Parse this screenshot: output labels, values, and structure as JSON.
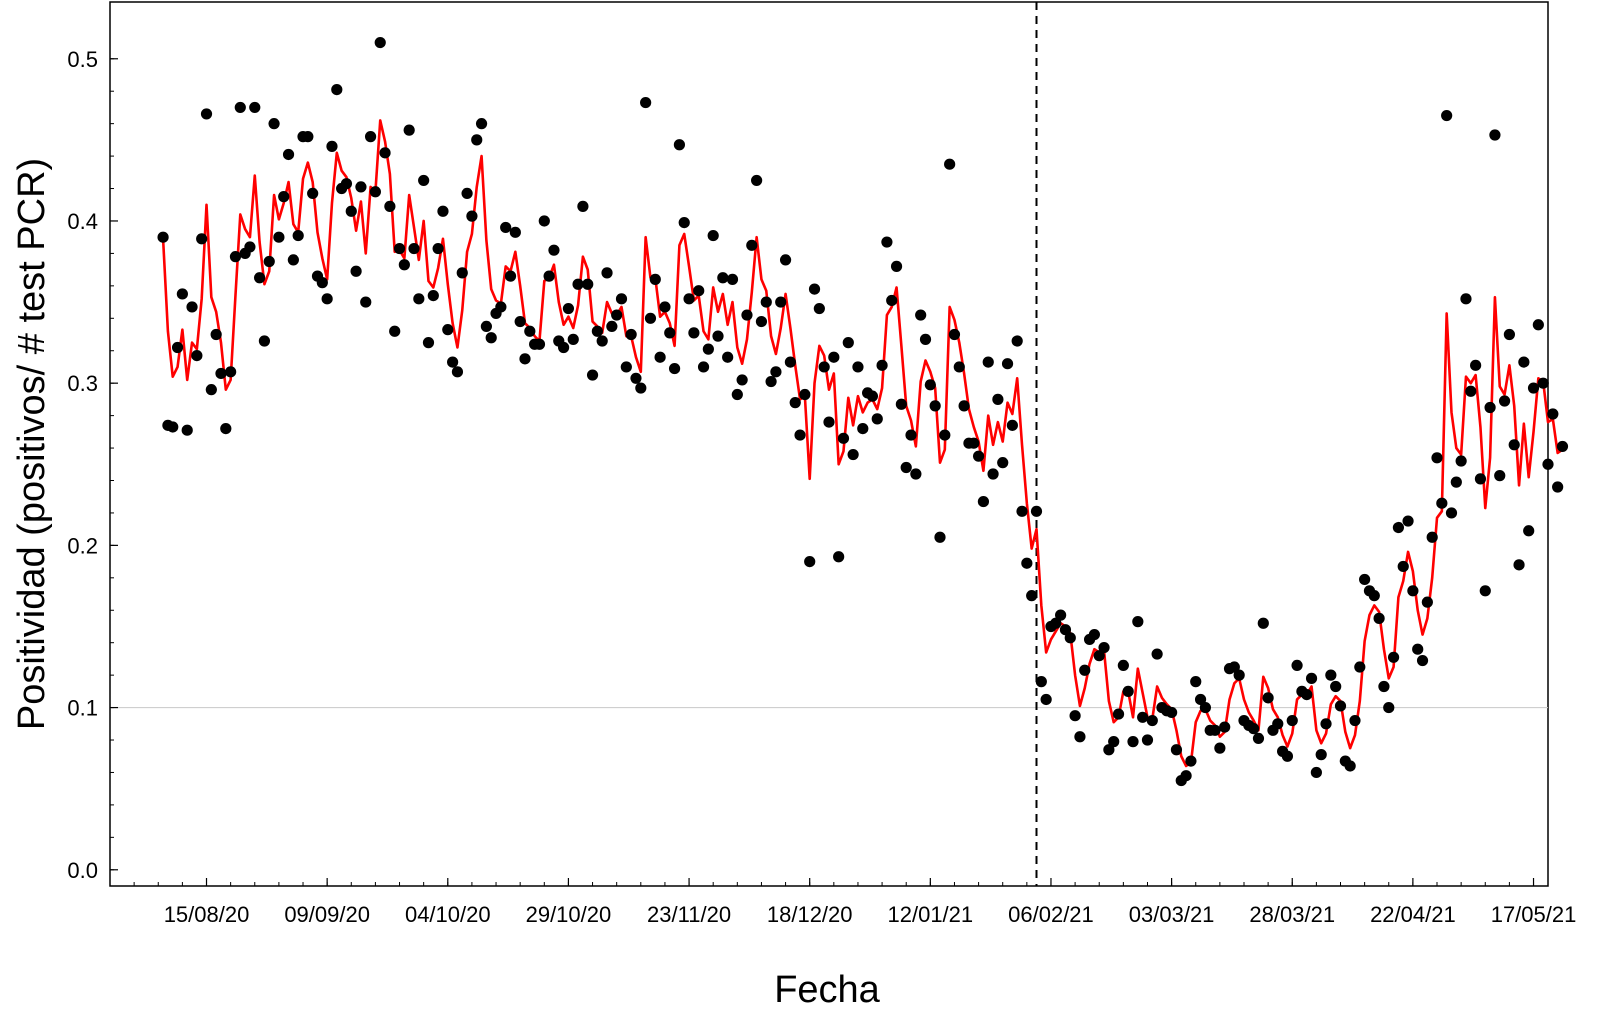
{
  "chart_data": {
    "type": "scatter",
    "title": "",
    "xlabel": "Fecha",
    "ylabel": "Positividad (positivos/ # test PCR)",
    "x_ticks": [
      "15/08/20",
      "09/09/20",
      "04/10/20",
      "29/10/20",
      "23/11/20",
      "18/12/20",
      "12/01/21",
      "06/02/21",
      "03/03/21",
      "28/03/21",
      "22/04/21",
      "17/05/21"
    ],
    "y_ticks": [
      "0.0",
      "0.1",
      "0.2",
      "0.3",
      "0.4",
      "0.5"
    ],
    "ylim": [
      -0.01,
      0.535
    ],
    "xlim": [
      "2020-07-26",
      "2021-05-20"
    ],
    "reference_line_y": 0.1,
    "vertical_marker_date": "2021-02-03",
    "series": [
      {
        "kind": "points",
        "color": "#000000",
        "x_start": "2020-08-06",
        "values": [
          0.39,
          0.274,
          0.273,
          0.322,
          0.355,
          0.271,
          0.347,
          0.317,
          0.389,
          0.466,
          0.296,
          0.33,
          0.306,
          0.272,
          0.307,
          0.378,
          0.47,
          0.38,
          0.384,
          0.47,
          0.365,
          0.326,
          0.375,
          0.46,
          0.39,
          0.415,
          0.441,
          0.376,
          0.391,
          0.452,
          0.452,
          0.417,
          0.366,
          0.362,
          0.352,
          0.446,
          0.481,
          0.42,
          0.423,
          0.406,
          0.369,
          0.421,
          0.35,
          0.452,
          0.418,
          0.51,
          0.442,
          0.409,
          0.332,
          0.383,
          0.373,
          0.456,
          0.383,
          0.352,
          0.425,
          0.325,
          0.354,
          0.383,
          0.406,
          0.333,
          0.313,
          0.307,
          0.368,
          0.417,
          0.403,
          0.45,
          0.46,
          0.335,
          0.328,
          0.343,
          0.347,
          0.396,
          0.366,
          0.393,
          0.338,
          0.315,
          0.332,
          0.324,
          0.324,
          0.4,
          0.366,
          0.382,
          0.326,
          0.322,
          0.346,
          0.327,
          0.361,
          0.409,
          0.361,
          0.305,
          0.332,
          0.326,
          0.368,
          0.335,
          0.342,
          0.352,
          0.31,
          0.33,
          0.303,
          0.297,
          0.473,
          0.34,
          0.364,
          0.316,
          0.347,
          0.331,
          0.309,
          0.447,
          0.399,
          0.352,
          0.331,
          0.357,
          0.31,
          0.321,
          0.391,
          0.329,
          0.365,
          0.316,
          0.364,
          0.293,
          0.302,
          0.342,
          0.385,
          0.425,
          0.338,
          0.35,
          0.301,
          0.307,
          0.35,
          0.376,
          0.313,
          0.288,
          0.268,
          0.293,
          0.19,
          0.358,
          0.346,
          0.31,
          0.276,
          0.316,
          0.193,
          0.266,
          0.325,
          0.256,
          0.31,
          0.272,
          0.294,
          0.292,
          0.278,
          0.311,
          0.387,
          0.351,
          0.372,
          0.287,
          0.248,
          0.268,
          0.244,
          0.342,
          0.327,
          0.299,
          0.286,
          0.205,
          0.268,
          0.435,
          0.33,
          0.31,
          0.286,
          0.263,
          0.263,
          0.255,
          0.227,
          0.313,
          0.244,
          0.29,
          0.251,
          0.312,
          0.274,
          0.326,
          0.221,
          0.189,
          0.169,
          0.221,
          0.116,
          0.105,
          0.15,
          0.152,
          0.157,
          0.148,
          0.143,
          0.095,
          0.082,
          0.123,
          0.142,
          0.145,
          0.132,
          0.137,
          0.074,
          0.079,
          0.096,
          0.126,
          0.11,
          0.079,
          0.153,
          0.094,
          0.08,
          0.092,
          0.133,
          0.1,
          0.098,
          0.097,
          0.074,
          0.055,
          0.058,
          0.067,
          0.116,
          0.105,
          0.1,
          0.086,
          0.086,
          0.075,
          0.088,
          0.124,
          0.125,
          0.12,
          0.092,
          0.089,
          0.087,
          0.081,
          0.152,
          0.106,
          0.086,
          0.09,
          0.073,
          0.07,
          0.092,
          0.126,
          0.11,
          0.108,
          0.118,
          0.06,
          0.071,
          0.09,
          0.12,
          0.113,
          0.101,
          0.067,
          0.064,
          0.092,
          0.125,
          0.179,
          0.172,
          0.169,
          0.155,
          0.113,
          0.1,
          0.131,
          0.211,
          0.187,
          0.215,
          0.172,
          0.136,
          0.129,
          0.165,
          0.205,
          0.254,
          0.226,
          0.465,
          0.22,
          0.239,
          0.252,
          0.352,
          0.295,
          0.311,
          0.241,
          0.172,
          0.285,
          0.453,
          0.243,
          0.289,
          0.33,
          0.262,
          0.188,
          0.313,
          0.209,
          0.297,
          0.336,
          0.3,
          0.25,
          0.281,
          0.236,
          0.261
        ]
      },
      {
        "kind": "line",
        "color": "#ff0000",
        "x_start": "2020-08-06",
        "values": [
          0.389,
          0.332,
          0.304,
          0.31,
          0.333,
          0.302,
          0.325,
          0.321,
          0.352,
          0.41,
          0.353,
          0.344,
          0.325,
          0.296,
          0.302,
          0.354,
          0.404,
          0.395,
          0.39,
          0.428,
          0.387,
          0.361,
          0.369,
          0.416,
          0.401,
          0.411,
          0.424,
          0.398,
          0.393,
          0.426,
          0.436,
          0.424,
          0.393,
          0.377,
          0.364,
          0.411,
          0.442,
          0.431,
          0.427,
          0.414,
          0.394,
          0.412,
          0.38,
          0.421,
          0.418,
          0.462,
          0.449,
          0.429,
          0.381,
          0.382,
          0.377,
          0.416,
          0.396,
          0.376,
          0.4,
          0.363,
          0.359,
          0.371,
          0.389,
          0.361,
          0.337,
          0.322,
          0.345,
          0.381,
          0.392,
          0.421,
          0.44,
          0.388,
          0.358,
          0.351,
          0.349,
          0.372,
          0.369,
          0.381,
          0.36,
          0.337,
          0.334,
          0.329,
          0.326,
          0.363,
          0.365,
          0.373,
          0.35,
          0.336,
          0.341,
          0.334,
          0.348,
          0.378,
          0.37,
          0.338,
          0.335,
          0.331,
          0.35,
          0.343,
          0.342,
          0.347,
          0.329,
          0.329,
          0.316,
          0.307,
          0.39,
          0.365,
          0.365,
          0.341,
          0.344,
          0.337,
          0.323,
          0.385,
          0.392,
          0.372,
          0.351,
          0.354,
          0.332,
          0.327,
          0.359,
          0.344,
          0.355,
          0.336,
          0.35,
          0.322,
          0.312,
          0.327,
          0.356,
          0.39,
          0.364,
          0.357,
          0.329,
          0.318,
          0.334,
          0.355,
          0.334,
          0.311,
          0.29,
          0.292,
          0.241,
          0.3,
          0.323,
          0.317,
          0.296,
          0.306,
          0.25,
          0.258,
          0.291,
          0.274,
          0.292,
          0.282,
          0.288,
          0.29,
          0.284,
          0.297,
          0.342,
          0.347,
          0.359,
          0.323,
          0.286,
          0.277,
          0.261,
          0.301,
          0.314,
          0.307,
          0.297,
          0.251,
          0.259,
          0.347,
          0.339,
          0.325,
          0.306,
          0.284,
          0.273,
          0.264,
          0.246,
          0.28,
          0.262,
          0.276,
          0.264,
          0.288,
          0.281,
          0.303,
          0.262,
          0.226,
          0.198,
          0.21,
          0.163,
          0.134,
          0.142,
          0.147,
          0.152,
          0.15,
          0.146,
          0.12,
          0.101,
          0.112,
          0.127,
          0.136,
          0.134,
          0.135,
          0.104,
          0.091,
          0.094,
          0.11,
          0.11,
          0.094,
          0.124,
          0.109,
          0.094,
          0.093,
          0.113,
          0.106,
          0.102,
          0.099,
          0.086,
          0.07,
          0.064,
          0.066,
          0.091,
          0.098,
          0.099,
          0.092,
          0.089,
          0.082,
          0.085,
          0.105,
          0.115,
          0.118,
          0.105,
          0.097,
          0.092,
          0.086,
          0.119,
          0.112,
          0.099,
          0.094,
          0.083,
          0.076,
          0.084,
          0.105,
          0.108,
          0.108,
          0.113,
          0.086,
          0.078,
          0.084,
          0.102,
          0.107,
          0.104,
          0.085,
          0.075,
          0.083,
          0.104,
          0.141,
          0.157,
          0.163,
          0.159,
          0.136,
          0.118,
          0.125,
          0.168,
          0.178,
          0.196,
          0.184,
          0.16,
          0.145,
          0.155,
          0.18,
          0.217,
          0.221,
          0.343,
          0.282,
          0.26,
          0.256,
          0.304,
          0.3,
          0.305,
          0.273,
          0.223,
          0.254,
          0.353,
          0.298,
          0.293,
          0.311,
          0.286,
          0.237,
          0.275,
          0.242,
          0.27,
          0.303,
          0.301,
          0.276,
          0.278,
          0.257,
          0.259
        ]
      }
    ],
    "grid": false
  }
}
